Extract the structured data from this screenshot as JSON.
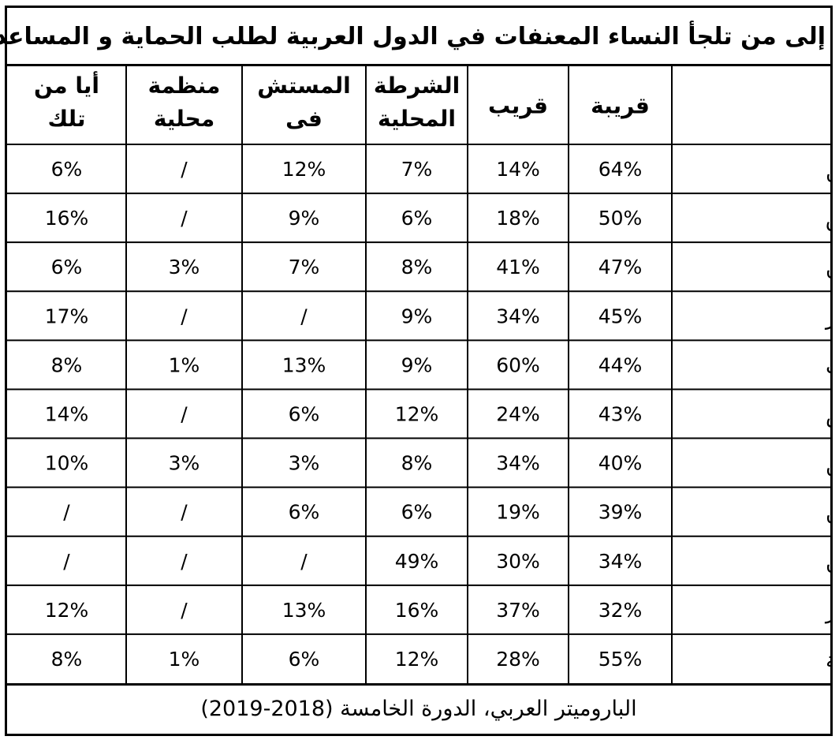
{
  "title": "إلى من تلجأ النساء المعنفات في الدول العربية لطلب الحماية و المساعدة؟",
  "footer": "الباروميتر العربي، الدورة الخامسة (2018-2019)",
  "colors": {
    "highlight": "#e8302a",
    "grid": "#000000",
    "background": "#ffffff"
  },
  "chart_data": {
    "type": "table",
    "columns": [
      {
        "lines": [
          "قريبة"
        ]
      },
      {
        "lines": [
          "قريب"
        ]
      },
      {
        "lines": [
          "الشرطة",
          "المحلية"
        ]
      },
      {
        "lines": [
          "المستش",
          "فى"
        ]
      },
      {
        "lines": [
          "منظمة",
          "محلية"
        ]
      },
      {
        "lines": [
          "أيا من",
          "تلك"
        ]
      }
    ],
    "rows": [
      {
        "label": "فلسطين",
        "values": [
          "64%",
          "14%",
          "7%",
          "12%",
          "/",
          "6%"
        ]
      },
      {
        "label": "العراق",
        "values": [
          "50%",
          "18%",
          "6%",
          "9%",
          "/",
          "16%"
        ]
      },
      {
        "label": "السودان",
        "values": [
          "47%",
          "41%",
          "8%",
          "7%",
          "3%",
          "6%"
        ]
      },
      {
        "label": "الجزائر",
        "values": [
          "45%",
          "34%",
          "9%",
          "/",
          "/",
          "17%"
        ]
      },
      {
        "label": "المغرب",
        "values": [
          "44%",
          "60%",
          "9%",
          "13%",
          "1%",
          "8%"
        ]
      },
      {
        "label": "تونس",
        "values": [
          "43%",
          "24%",
          "12%",
          "6%",
          "/",
          "14%"
        ]
      },
      {
        "label": "اليمن",
        "values": [
          "40%",
          "34%",
          "8%",
          "3%",
          "3%",
          "10%"
        ]
      },
      {
        "label": "الأردن",
        "values": [
          "39%",
          "19%",
          "6%",
          "6%",
          "/",
          "/"
        ]
      },
      {
        "label": "لبنان",
        "values": [
          "34%",
          "30%",
          "49%",
          "/",
          "/",
          "/"
        ],
        "highlight_col": 2
      },
      {
        "label": "مصر",
        "values": [
          "32%",
          "37%",
          "16%",
          "13%",
          "/",
          "12%"
        ]
      },
      {
        "label": "الدول العربية",
        "values": [
          "55%",
          "28%",
          "12%",
          "6%",
          "1%",
          "8%"
        ]
      }
    ]
  }
}
